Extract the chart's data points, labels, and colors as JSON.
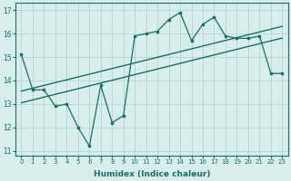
{
  "title": "",
  "xlabel": "Humidex (Indice chaleur)",
  "bg_color": "#d8eeed",
  "line_color": "#1a6e63",
  "grid_color": "#b8d8d5",
  "x_data": [
    0,
    1,
    2,
    3,
    4,
    5,
    6,
    7,
    8,
    9,
    10,
    11,
    12,
    13,
    14,
    15,
    16,
    17,
    18,
    19,
    20,
    21,
    22,
    23
  ],
  "y_main": [
    15.1,
    13.6,
    13.6,
    12.9,
    13.0,
    12.0,
    11.2,
    13.8,
    12.2,
    12.5,
    15.9,
    16.0,
    16.1,
    16.6,
    16.9,
    15.7,
    16.4,
    16.7,
    15.9,
    15.8,
    15.8,
    15.9,
    14.3,
    14.3
  ],
  "y_trend_upper": [
    13.55,
    13.67,
    13.79,
    13.91,
    14.03,
    14.15,
    14.27,
    14.39,
    14.51,
    14.63,
    14.75,
    14.87,
    14.99,
    15.11,
    15.23,
    15.35,
    15.47,
    15.59,
    15.71,
    15.83,
    15.95,
    16.07,
    16.19,
    16.31
  ],
  "y_trend_lower": [
    13.05,
    13.17,
    13.29,
    13.41,
    13.53,
    13.65,
    13.77,
    13.89,
    14.01,
    14.13,
    14.25,
    14.37,
    14.49,
    14.61,
    14.73,
    14.85,
    14.97,
    15.09,
    15.21,
    15.33,
    15.45,
    15.57,
    15.69,
    15.81
  ],
  "xlim": [
    -0.5,
    23.5
  ],
  "ylim": [
    10.8,
    17.3
  ],
  "yticks": [
    11,
    12,
    13,
    14,
    15,
    16,
    17
  ],
  "xticks": [
    0,
    1,
    2,
    3,
    4,
    5,
    6,
    7,
    8,
    9,
    10,
    11,
    12,
    13,
    14,
    15,
    16,
    17,
    18,
    19,
    20,
    21,
    22,
    23
  ]
}
